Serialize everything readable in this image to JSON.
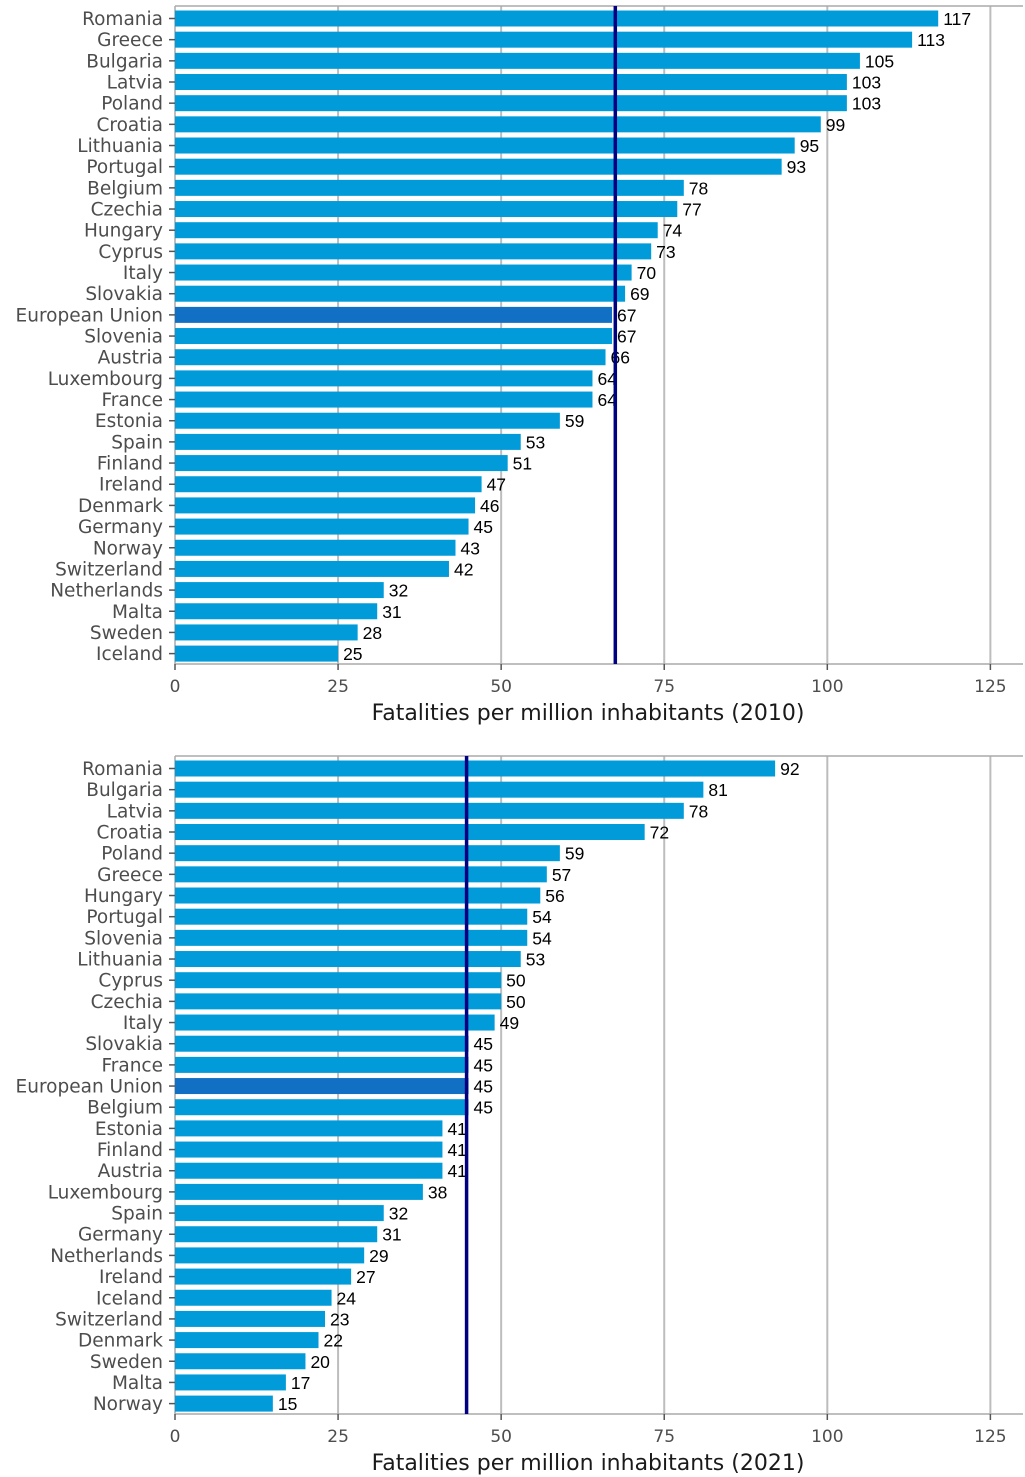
{
  "colors": {
    "bar": "#009bd8",
    "bar_highlight": "#1170c4",
    "reference_line": "#000080",
    "grid": "#bdbdbd",
    "axis": "#aaaaaa"
  },
  "chart_data": [
    {
      "type": "bar",
      "orientation": "horizontal",
      "xlabel": "Fatalities per million inhabitants (2010)",
      "xlim": [
        0,
        130
      ],
      "xticks": [
        0,
        25,
        50,
        75,
        100,
        125
      ],
      "grid": true,
      "reference_line": 67.5,
      "highlight": "European Union",
      "categories": [
        "Romania",
        "Greece",
        "Bulgaria",
        "Latvia",
        "Poland",
        "Croatia",
        "Lithuania",
        "Portugal",
        "Belgium",
        "Czechia",
        "Hungary",
        "Cyprus",
        "Italy",
        "Slovakia",
        "European Union",
        "Slovenia",
        "Austria",
        "Luxembourg",
        "France",
        "Estonia",
        "Spain",
        "Finland",
        "Ireland",
        "Denmark",
        "Germany",
        "Norway",
        "Switzerland",
        "Netherlands",
        "Malta",
        "Sweden",
        "Iceland"
      ],
      "values": [
        117,
        113,
        105,
        103,
        103,
        99,
        95,
        93,
        78,
        77,
        74,
        73,
        70,
        69,
        67,
        67,
        66,
        64,
        64,
        59,
        53,
        51,
        47,
        46,
        45,
        43,
        42,
        32,
        31,
        28,
        25
      ]
    },
    {
      "type": "bar",
      "orientation": "horizontal",
      "xlabel": "Fatalities per million inhabitants (2021)",
      "xlim": [
        0,
        130
      ],
      "xticks": [
        0,
        25,
        50,
        75,
        100,
        125
      ],
      "grid": true,
      "reference_line": 44.7,
      "highlight": "European Union",
      "categories": [
        "Romania",
        "Bulgaria",
        "Latvia",
        "Croatia",
        "Poland",
        "Greece",
        "Hungary",
        "Portugal",
        "Slovenia",
        "Lithuania",
        "Cyprus",
        "Czechia",
        "Italy",
        "Slovakia",
        "France",
        "European Union",
        "Belgium",
        "Estonia",
        "Finland",
        "Austria",
        "Luxembourg",
        "Spain",
        "Germany",
        "Netherlands",
        "Ireland",
        "Iceland",
        "Switzerland",
        "Denmark",
        "Sweden",
        "Malta",
        "Norway"
      ],
      "values": [
        92,
        81,
        78,
        72,
        59,
        57,
        56,
        54,
        54,
        53,
        50,
        50,
        49,
        45,
        45,
        45,
        45,
        41,
        41,
        41,
        38,
        32,
        31,
        29,
        27,
        24,
        23,
        22,
        20,
        17,
        15
      ]
    }
  ]
}
